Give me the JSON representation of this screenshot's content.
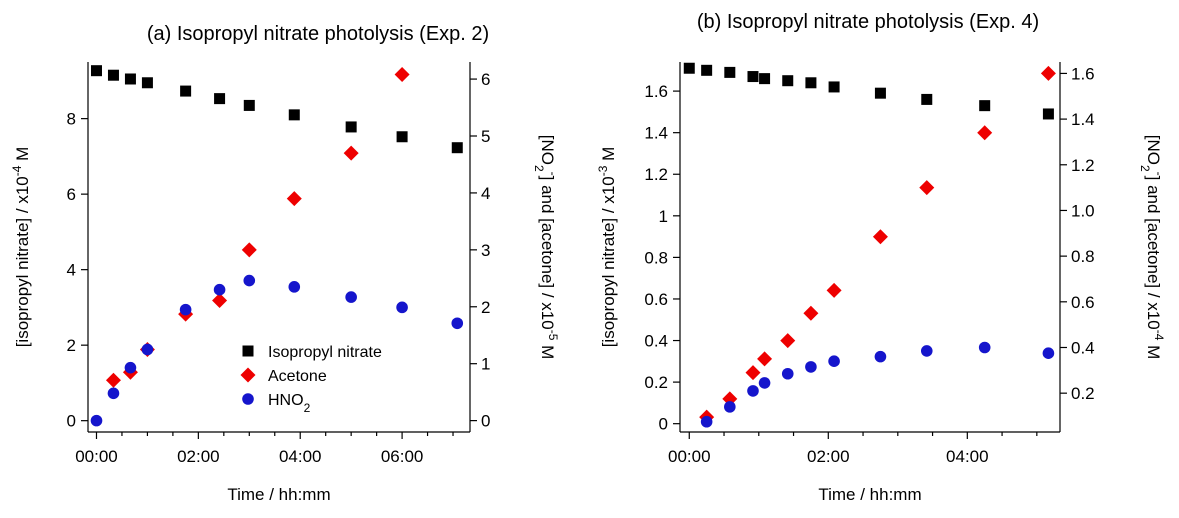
{
  "chart_data": [
    {
      "type": "scatter",
      "title": "(a) Isopropyl nitrate photolysis (Exp. 2)",
      "xlabel": "Time / hh:mm",
      "x_unit": "minutes",
      "x_ticks": [
        0,
        120,
        240,
        360
      ],
      "x_tick_labels": [
        "00:00",
        "02:00",
        "04:00",
        "06:00"
      ],
      "xlim": [
        -10,
        440
      ],
      "y_left": {
        "label_parts": [
          "[isopropyl nitrate] / x10",
          "-4",
          " M"
        ],
        "lim": [
          -0.3,
          9.5
        ],
        "ticks": [
          0,
          2,
          4,
          6,
          8
        ],
        "tick_labels": [
          "0",
          "2",
          "4",
          "6",
          "8"
        ]
      },
      "y_right": {
        "label_parts": [
          "[NO",
          "2",
          "-",
          "] and [acetone] / x10",
          "-5",
          " M"
        ],
        "lim": [
          -0.2,
          6.3
        ],
        "ticks": [
          0,
          1,
          2,
          3,
          4,
          5,
          6
        ],
        "tick_labels": [
          "0",
          "1",
          "2",
          "3",
          "4",
          "5",
          "6"
        ]
      },
      "legend": {
        "placement": "bottom-right",
        "entries": [
          {
            "series": 0,
            "label_parts": [
              "Isopropyl nitrate"
            ]
          },
          {
            "series": 1,
            "label_parts": [
              "Acetone"
            ]
          },
          {
            "series": 2,
            "label_parts": [
              "HNO",
              "2"
            ]
          }
        ]
      },
      "series": [
        {
          "name": "Isopropyl nitrate",
          "axis": "left",
          "marker": "square",
          "color": "#000000",
          "x": [
            0,
            20,
            40,
            60,
            105,
            145,
            180,
            233,
            300,
            360,
            425
          ],
          "y": [
            9.27,
            9.15,
            9.05,
            8.95,
            8.73,
            8.53,
            8.35,
            8.1,
            7.78,
            7.52,
            7.23
          ]
        },
        {
          "name": "Acetone",
          "axis": "right",
          "marker": "diamond",
          "color": "#ee0000",
          "x": [
            20,
            40,
            60,
            105,
            145,
            180,
            233,
            300,
            360
          ],
          "y": [
            0.71,
            0.85,
            1.25,
            1.87,
            2.11,
            3.0,
            3.9,
            4.7,
            6.08
          ]
        },
        {
          "name": "HNO2",
          "axis": "right",
          "marker": "circle",
          "color": "#1515cc",
          "x": [
            0,
            20,
            40,
            60,
            105,
            145,
            180,
            233,
            300,
            360,
            425
          ],
          "y": [
            0.0,
            0.48,
            0.93,
            1.25,
            1.95,
            2.3,
            2.46,
            2.35,
            2.17,
            1.99,
            1.71
          ]
        }
      ]
    },
    {
      "type": "scatter",
      "title": "(b) Isopropyl nitrate photolysis (Exp. 4)",
      "xlabel": "Time / hh:mm",
      "x_unit": "minutes",
      "x_ticks": [
        0,
        120,
        240
      ],
      "x_tick_labels": [
        "00:00",
        "02:00",
        "04:00"
      ],
      "xlim": [
        -8,
        320
      ],
      "y_left": {
        "label_parts": [
          "[isopropyl nitrate] / x10",
          "-3",
          " M"
        ],
        "lim": [
          -0.04,
          1.74
        ],
        "ticks": [
          0,
          0.2,
          0.4,
          0.6,
          0.8,
          1.0,
          1.2,
          1.4,
          1.6
        ],
        "tick_labels": [
          "0",
          "0.2",
          "0.4",
          "0.6",
          "0.8",
          "1",
          "1.2",
          "1.4",
          "1.6"
        ]
      },
      "y_right": {
        "label_parts": [
          "[NO",
          "2",
          "-",
          "] and [acetone] / x10",
          "-4",
          " M"
        ],
        "lim": [
          0.03,
          1.65
        ],
        "ticks": [
          0.2,
          0.4,
          0.6,
          0.8,
          1.0,
          1.2,
          1.4,
          1.6
        ],
        "tick_labels": [
          "0.2",
          "0.4",
          "0.6",
          "0.8",
          "1.0",
          "1.2",
          "1.4",
          "1.6"
        ]
      },
      "series": [
        {
          "name": "Isopropyl nitrate",
          "axis": "left",
          "marker": "square",
          "color": "#000000",
          "x": [
            0,
            15,
            35,
            55,
            65,
            85,
            105,
            125,
            165,
            205,
            255,
            310
          ],
          "y": [
            1.71,
            1.7,
            1.69,
            1.67,
            1.66,
            1.65,
            1.64,
            1.62,
            1.59,
            1.56,
            1.53,
            1.49
          ]
        },
        {
          "name": "Acetone",
          "axis": "right",
          "marker": "diamond",
          "color": "#ee0000",
          "x": [
            15,
            35,
            55,
            65,
            85,
            105,
            125,
            165,
            205,
            255,
            310
          ],
          "y": [
            0.095,
            0.175,
            0.29,
            0.35,
            0.43,
            0.55,
            0.65,
            0.885,
            1.1,
            1.34,
            1.6
          ]
        },
        {
          "name": "HNO2",
          "axis": "right",
          "marker": "circle",
          "color": "#1515cc",
          "x": [
            15,
            35,
            55,
            65,
            85,
            105,
            125,
            165,
            205,
            255,
            310
          ],
          "y": [
            0.075,
            0.14,
            0.21,
            0.245,
            0.285,
            0.315,
            0.34,
            0.36,
            0.385,
            0.4,
            0.375
          ]
        }
      ]
    }
  ]
}
